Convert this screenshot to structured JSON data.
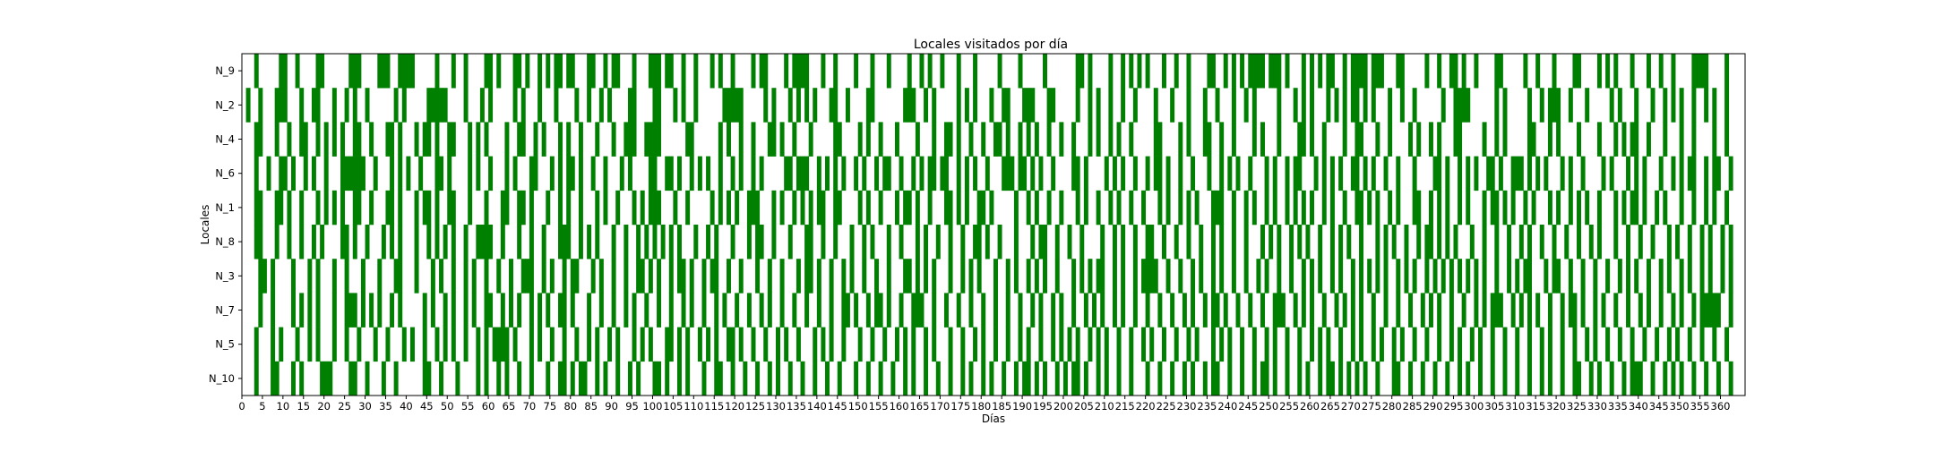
{
  "chart_data": {
    "type": "heatmap",
    "title": "Locales visitados por día",
    "xlabel": "Días",
    "ylabel": "Locales",
    "xlim": [
      0,
      366
    ],
    "xticks": [
      0,
      5,
      10,
      15,
      20,
      25,
      30,
      35,
      40,
      45,
      50,
      55,
      60,
      65,
      70,
      75,
      80,
      85,
      90,
      95,
      100,
      105,
      110,
      115,
      120,
      125,
      130,
      135,
      140,
      145,
      150,
      155,
      160,
      165,
      170,
      175,
      180,
      185,
      190,
      195,
      200,
      205,
      210,
      215,
      220,
      225,
      230,
      235,
      240,
      245,
      250,
      255,
      260,
      265,
      270,
      275,
      280,
      285,
      290,
      295,
      300,
      305,
      310,
      315,
      320,
      325,
      330,
      335,
      340,
      345,
      350,
      355,
      360
    ],
    "categories": [
      "N_9",
      "N_2",
      "N_4",
      "N_6",
      "N_1",
      "N_8",
      "N_3",
      "N_7",
      "N_5",
      "N_10"
    ],
    "grid": false,
    "legend": "none",
    "color": "#008000",
    "visits": [
      [
        3,
        9,
        10,
        13,
        18,
        19,
        26,
        27,
        28,
        33,
        34,
        35,
        38,
        39,
        40,
        41,
        47,
        51,
        54,
        59,
        60,
        62,
        66,
        67,
        69,
        72,
        74,
        76,
        77,
        79,
        80,
        84,
        85,
        88,
        90,
        91,
        95,
        99,
        100,
        101,
        103,
        104,
        107,
        110,
        114,
        116,
        119,
        124,
        126,
        127,
        132,
        134,
        135,
        136,
        137,
        141,
        144,
        149,
        153,
        157,
        162,
        165,
        167,
        170,
        174,
        178,
        184,
        189,
        195,
        203,
        204,
        206,
        211,
        214,
        216,
        218,
        220,
        224,
        227,
        230,
        235,
        236,
        239,
        241,
        243,
        245,
        246,
        247,
        248,
        250,
        251,
        252,
        254,
        258,
        260,
        262,
        264,
        265,
        268,
        270,
        271,
        272,
        273,
        275,
        276,
        277,
        281,
        282,
        288,
        291,
        294,
        295,
        297,
        300,
        305,
        306,
        312,
        315,
        319,
        324,
        325,
        330,
        332,
        334,
        338,
        342,
        345,
        348,
        353,
        354,
        355,
        356,
        361
      ],
      [
        1,
        4,
        8,
        9,
        10,
        14,
        17,
        18,
        22,
        25,
        27,
        30,
        37,
        39,
        45,
        46,
        47,
        48,
        49,
        54,
        58,
        60,
        66,
        68,
        72,
        76,
        81,
        84,
        87,
        89,
        94,
        95,
        100,
        101,
        105,
        107,
        110,
        117,
        118,
        119,
        120,
        121,
        127,
        129,
        133,
        135,
        137,
        139,
        143,
        144,
        147,
        152,
        153,
        161,
        162,
        163,
        166,
        168,
        174,
        176,
        178,
        182,
        185,
        186,
        190,
        191,
        192,
        196,
        197,
        203,
        206,
        208,
        211,
        214,
        217,
        222,
        226,
        230,
        234,
        237,
        241,
        244,
        246,
        252,
        256,
        258,
        260,
        264,
        266,
        268,
        270,
        271,
        273,
        275,
        279,
        282,
        285,
        292,
        295,
        296,
        297,
        298,
        305,
        307,
        313,
        316,
        318,
        319,
        320,
        323,
        327,
        333,
        335,
        339,
        343,
        346,
        348,
        350,
        353,
        356,
        358,
        361
      ],
      [
        3,
        4,
        8,
        11,
        14,
        15,
        18,
        20,
        22,
        24,
        27,
        28,
        31,
        35,
        36,
        38,
        42,
        44,
        45,
        47,
        50,
        51,
        55,
        57,
        59,
        64,
        67,
        68,
        71,
        73,
        77,
        79,
        82,
        86,
        90,
        93,
        94,
        95,
        98,
        99,
        100,
        101,
        108,
        109,
        116,
        118,
        121,
        124,
        128,
        129,
        131,
        134,
        138,
        144,
        145,
        150,
        152,
        155,
        159,
        164,
        168,
        171,
        172,
        174,
        177,
        180,
        183,
        184,
        186,
        189,
        191,
        193,
        196,
        199,
        202,
        206,
        208,
        211,
        213,
        216,
        222,
        223,
        228,
        230,
        234,
        235,
        238,
        241,
        246,
        248,
        252,
        257,
        258,
        260,
        263,
        268,
        271,
        272,
        276,
        279,
        284,
        286,
        289,
        291,
        295,
        296,
        302,
        305,
        307,
        313,
        314,
        318,
        320,
        325,
        330,
        334,
        336,
        338,
        339,
        342,
        346,
        350,
        353,
        358,
        361
      ],
      [
        3,
        6,
        9,
        10,
        12,
        15,
        17,
        20,
        24,
        25,
        26,
        27,
        28,
        29,
        32,
        36,
        38,
        40,
        43,
        47,
        48,
        50,
        55,
        57,
        60,
        64,
        66,
        70,
        71,
        75,
        77,
        79,
        80,
        82,
        85,
        88,
        92,
        94,
        99,
        100,
        103,
        104,
        106,
        109,
        111,
        113,
        116,
        119,
        121,
        124,
        126,
        132,
        133,
        135,
        136,
        137,
        140,
        142,
        144,
        146,
        149,
        151,
        154,
        156,
        157,
        160,
        163,
        165,
        167,
        168,
        170,
        171,
        174,
        176,
        178,
        181,
        185,
        186,
        187,
        189,
        190,
        192,
        194,
        197,
        202,
        203,
        205,
        210,
        212,
        214,
        217,
        220,
        222,
        223,
        225,
        228,
        231,
        235,
        238,
        240,
        242,
        245,
        249,
        251,
        254,
        256,
        257,
        261,
        263,
        265,
        267,
        270,
        271,
        273,
        275,
        278,
        281,
        285,
        290,
        291,
        293,
        296,
        298,
        300,
        303,
        304,
        306,
        309,
        310,
        311,
        313,
        315,
        317,
        321,
        323,
        326,
        331,
        333,
        337,
        339,
        341,
        345,
        348,
        350,
        352,
        353,
        356,
        358,
        359,
        362
      ],
      [
        3,
        4,
        8,
        9,
        11,
        14,
        18,
        20,
        22,
        24,
        27,
        28,
        31,
        35,
        36,
        38,
        42,
        44,
        45,
        47,
        50,
        51,
        55,
        59,
        63,
        64,
        67,
        68,
        70,
        74,
        77,
        79,
        82,
        86,
        88,
        91,
        95,
        97,
        99,
        100,
        101,
        105,
        108,
        114,
        116,
        118,
        120,
        123,
        124,
        125,
        129,
        131,
        134,
        136,
        138,
        140,
        141,
        144,
        145,
        150,
        152,
        155,
        159,
        161,
        162,
        164,
        167,
        171,
        172,
        174,
        176,
        179,
        180,
        182,
        188,
        191,
        193,
        196,
        199,
        203,
        205,
        208,
        211,
        213,
        216,
        219,
        223,
        225,
        228,
        230,
        232,
        236,
        237,
        238,
        241,
        244,
        246,
        249,
        251,
        254,
        256,
        258,
        260,
        263,
        265,
        268,
        271,
        272,
        274,
        276,
        279,
        281,
        285,
        286,
        289,
        291,
        293,
        296,
        298,
        302,
        304,
        305,
        307,
        309,
        312,
        314,
        318,
        320,
        323,
        325,
        327,
        330,
        334,
        336,
        338,
        339,
        341,
        344,
        346,
        350,
        353,
        356,
        358,
        361
      ],
      [
        3,
        4,
        8,
        11,
        14,
        17,
        19,
        24,
        25,
        27,
        30,
        34,
        36,
        38,
        42,
        45,
        47,
        49,
        51,
        54,
        57,
        58,
        59,
        60,
        63,
        67,
        70,
        73,
        77,
        78,
        79,
        82,
        84,
        86,
        90,
        93,
        96,
        98,
        100,
        102,
        104,
        106,
        110,
        113,
        115,
        119,
        123,
        125,
        126,
        129,
        133,
        137,
        138,
        141,
        144,
        148,
        151,
        153,
        157,
        160,
        164,
        166,
        169,
        172,
        175,
        178,
        179,
        181,
        184,
        188,
        192,
        194,
        195,
        198,
        201,
        204,
        209,
        212,
        214,
        217,
        220,
        221,
        224,
        227,
        230,
        233,
        236,
        238,
        241,
        244,
        248,
        250,
        252,
        255,
        257,
        259,
        262,
        265,
        267,
        269,
        272,
        276,
        278,
        280,
        283,
        286,
        288,
        289,
        291,
        293,
        295,
        299,
        302,
        305,
        308,
        311,
        313,
        316,
        319,
        322,
        325,
        328,
        330,
        334,
        337,
        340,
        343,
        347,
        349,
        352,
        355,
        357,
        360,
        362
      ],
      [
        4,
        5,
        7,
        12,
        16,
        18,
        22,
        25,
        29,
        33,
        37,
        38,
        42,
        46,
        48,
        51,
        54,
        56,
        59,
        62,
        65,
        68,
        69,
        70,
        73,
        75,
        78,
        80,
        81,
        85,
        87,
        90,
        93,
        96,
        97,
        99,
        101,
        104,
        106,
        107,
        109,
        112,
        114,
        115,
        118,
        121,
        125,
        128,
        131,
        135,
        137,
        138,
        140,
        143,
        146,
        148,
        151,
        154,
        157,
        161,
        162,
        164,
        166,
        168,
        172,
        175,
        177,
        179,
        183,
        186,
        188,
        191,
        193,
        195,
        198,
        202,
        204,
        206,
        208,
        209,
        212,
        214,
        217,
        219,
        220,
        221,
        222,
        225,
        228,
        231,
        233,
        236,
        238,
        241,
        244,
        247,
        249,
        252,
        255,
        258,
        260,
        262,
        265,
        267,
        270,
        272,
        274,
        276,
        278,
        281,
        283,
        285,
        288,
        290,
        292,
        294,
        296,
        298,
        300,
        302,
        305,
        308,
        310,
        312,
        313,
        317,
        319,
        320,
        323,
        326,
        329,
        332,
        335,
        337,
        339,
        342,
        345,
        347,
        350,
        352,
        355,
        357,
        360,
        362
      ],
      [
        4,
        7,
        12,
        14,
        16,
        18,
        22,
        25,
        26,
        27,
        29,
        31,
        33,
        36,
        38,
        44,
        46,
        49,
        51,
        54,
        56,
        59,
        60,
        63,
        65,
        67,
        70,
        72,
        74,
        77,
        78,
        80,
        84,
        87,
        90,
        93,
        95,
        98,
        101,
        104,
        107,
        109,
        112,
        115,
        117,
        120,
        123,
        126,
        128,
        131,
        134,
        137,
        140,
        143,
        146,
        147,
        149,
        152,
        154,
        155,
        157,
        160,
        163,
        164,
        165,
        168,
        171,
        174,
        177,
        180,
        183,
        186,
        189,
        192,
        194,
        197,
        199,
        202,
        205,
        207,
        209,
        212,
        214,
        217,
        220,
        223,
        226,
        229,
        231,
        234,
        236,
        237,
        239,
        242,
        245,
        248,
        251,
        252,
        253,
        256,
        258,
        260,
        263,
        266,
        268,
        270,
        272,
        275,
        278,
        281,
        284,
        287,
        289,
        291,
        294,
        297,
        300,
        302,
        304,
        305,
        306,
        309,
        311,
        313,
        315,
        318,
        321,
        323,
        324,
        326,
        329,
        331,
        334,
        337,
        340,
        342,
        345,
        348,
        350,
        353,
        355,
        356,
        357,
        358,
        359,
        362
      ],
      [
        3,
        7,
        9,
        13,
        16,
        18,
        22,
        25,
        28,
        32,
        35,
        39,
        41,
        44,
        47,
        49,
        51,
        54,
        57,
        59,
        61,
        62,
        63,
        64,
        66,
        70,
        72,
        75,
        78,
        81,
        84,
        86,
        89,
        91,
        95,
        97,
        99,
        103,
        104,
        106,
        108,
        111,
        113,
        115,
        118,
        119,
        121,
        124,
        127,
        130,
        132,
        135,
        139,
        141,
        143,
        146,
        150,
        153,
        156,
        159,
        161,
        163,
        166,
        168,
        172,
        175,
        178,
        180,
        183,
        186,
        189,
        191,
        194,
        197,
        199,
        201,
        203,
        206,
        208,
        210,
        213,
        216,
        219,
        221,
        224,
        227,
        230,
        232,
        236,
        238,
        240,
        243,
        246,
        249,
        251,
        254,
        257,
        260,
        262,
        264,
        267,
        270,
        272,
        275,
        277,
        280,
        282,
        285,
        288,
        291,
        294,
        296,
        299,
        301,
        304,
        307,
        310,
        313,
        316,
        318,
        321,
        324,
        327,
        329,
        332,
        335,
        338,
        341,
        344,
        347,
        349,
        352,
        355,
        358,
        361
      ],
      [
        3,
        7,
        8,
        12,
        14,
        19,
        20,
        21,
        26,
        27,
        30,
        34,
        37,
        44,
        45,
        48,
        52,
        57,
        59,
        62,
        64,
        67,
        70,
        74,
        77,
        78,
        80,
        82,
        83,
        86,
        88,
        91,
        94,
        96,
        100,
        101,
        103,
        106,
        108,
        112,
        115,
        116,
        119,
        122,
        125,
        128,
        130,
        133,
        136,
        139,
        142,
        145,
        149,
        152,
        155,
        158,
        161,
        163,
        166,
        169,
        172,
        175,
        177,
        180,
        182,
        185,
        188,
        190,
        191,
        193,
        195,
        198,
        200,
        202,
        203,
        205,
        208,
        210,
        213,
        216,
        220,
        223,
        226,
        229,
        231,
        234,
        236,
        237,
        240,
        243,
        246,
        248,
        249,
        251,
        254,
        257,
        259,
        262,
        264,
        265,
        267,
        269,
        271,
        273,
        276,
        280,
        281,
        284,
        287,
        290,
        293,
        296,
        298,
        301,
        304,
        307,
        310,
        313,
        316,
        318,
        321,
        324,
        325,
        328,
        330,
        333,
        336,
        338,
        339,
        340,
        343,
        346,
        348,
        350,
        353,
        356,
        359,
        362
      ]
    ]
  }
}
